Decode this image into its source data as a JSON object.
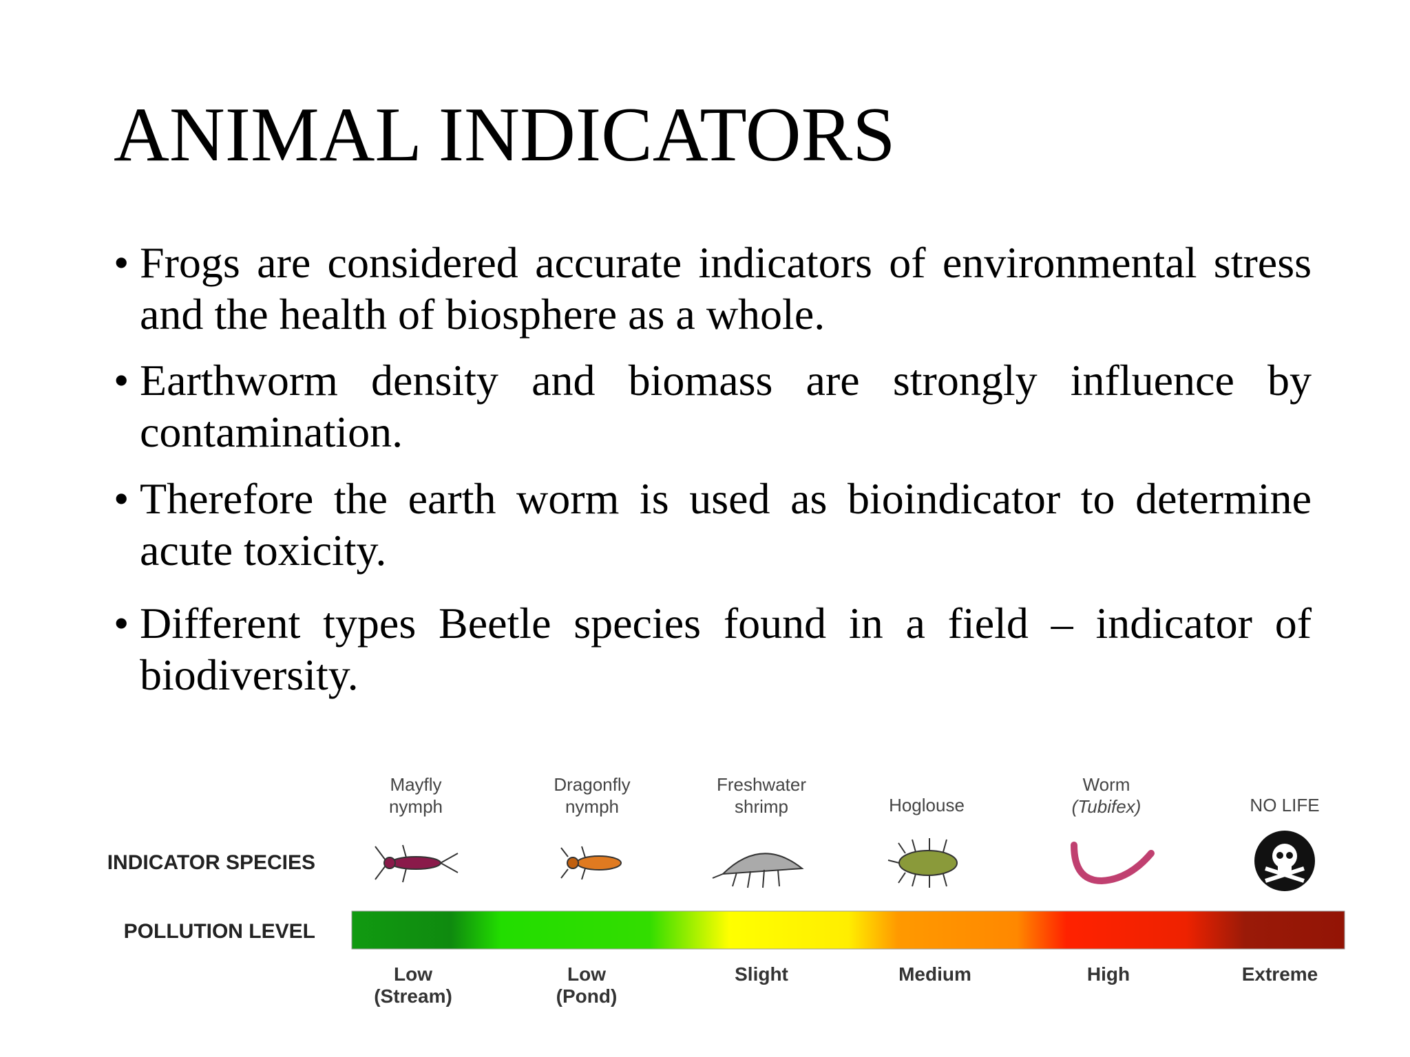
{
  "header": {
    "title": "ANIMAL INDICATORS"
  },
  "bullets": [
    "Frogs are considered accurate indicators of environmental stress and the health of biosphere as a whole.",
    "Earthworm density and biomass are strongly influence by contamination.",
    "Therefore the earth worm is used as bioindicator to determine acute toxicity.",
    "Different types Beetle species found in a field – indicator of biodiversity."
  ],
  "figure": {
    "row_labels": [
      "INDICATOR SPECIES",
      "POLLUTION LEVEL"
    ],
    "species": [
      [
        "Mayfly",
        "nymph"
      ],
      [
        "Dragonfly",
        "nymph"
      ],
      [
        "Freshwater",
        "shrimp"
      ],
      [
        "Hoglouse"
      ],
      [
        "Worm",
        "(Tubifex)"
      ],
      [
        "NO LIFE"
      ]
    ],
    "levels": [
      [
        "Low",
        "(Stream)"
      ],
      [
        "Low",
        "(Pond)"
      ],
      [
        "Slight"
      ],
      [
        "Medium"
      ],
      [
        "High"
      ],
      [
        "Extreme"
      ]
    ]
  }
}
